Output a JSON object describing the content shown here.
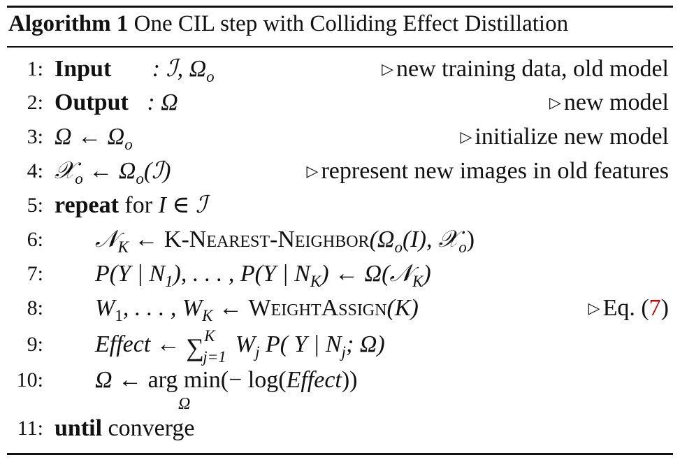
{
  "caption": {
    "label": "Algorithm 1",
    "title": "One CIL step with Colliding Effect Distillation"
  },
  "lines": [
    {
      "num": "1:",
      "kw": "Input",
      "rest": ": ℐ,  Ω",
      "sub": "o",
      "comment": "new training data, old model"
    },
    {
      "num": "2:",
      "kw": "Output",
      "rest": ": Ω",
      "comment": "new model"
    },
    {
      "num": "3:",
      "lhs": "Ω  ←  Ω",
      "sub": "o",
      "comment": "initialize new model"
    },
    {
      "num": "4:",
      "lhs": "𝒳",
      "sub1": "o",
      "mid": " ← Ω",
      "sub2": "o",
      "tail": "(ℐ)",
      "comment": "represent new images in old features"
    },
    {
      "num": "5:",
      "kw": "repeat",
      "rest": " for ",
      "math": "I ∈ ℐ"
    },
    {
      "num": "6:",
      "lhs": "𝒩",
      "sub1": "K",
      "mid": "  ←  ",
      "fn": "K-Nearest-Neighbor",
      "arg_a": "(Ω",
      "sub2": "o",
      "arg_b": "(I), 𝒳",
      "sub3": "o",
      "arg_c": ")"
    },
    {
      "num": "7:",
      "text_a": "P(Y | N",
      "sub1": "1",
      "text_b": "), . . . , P(Y | N",
      "sub2": "K",
      "text_c": ") ← Ω(𝒩",
      "sub3": "K",
      "text_d": ")"
    },
    {
      "num": "8:",
      "text_a": "W",
      "sub1": "1",
      "text_b": ", . . . , W",
      "sub2": "K",
      "text_c": " ← ",
      "fn": "WeightAssign",
      "text_d": "(K)",
      "comment_a": "Eq. (",
      "comment_ref": "7",
      "comment_b": ")"
    },
    {
      "num": "9:",
      "text_a": "Effect ← ",
      "sum": "∑",
      "sup": "K",
      "subsum": "j=1",
      "text_b": " W",
      "sub1": "j",
      "text_c": " P( Y | N",
      "sub2": "j",
      "text_d": "; Ω)"
    },
    {
      "num": "10:",
      "text_a": "Ω ← ",
      "argmin": "arg min",
      "under": "Ω",
      "text_b": "(− log(",
      "effect": "Effect",
      "text_c": "))"
    },
    {
      "num": "11:",
      "kw": "until",
      "rest": " converge"
    }
  ]
}
